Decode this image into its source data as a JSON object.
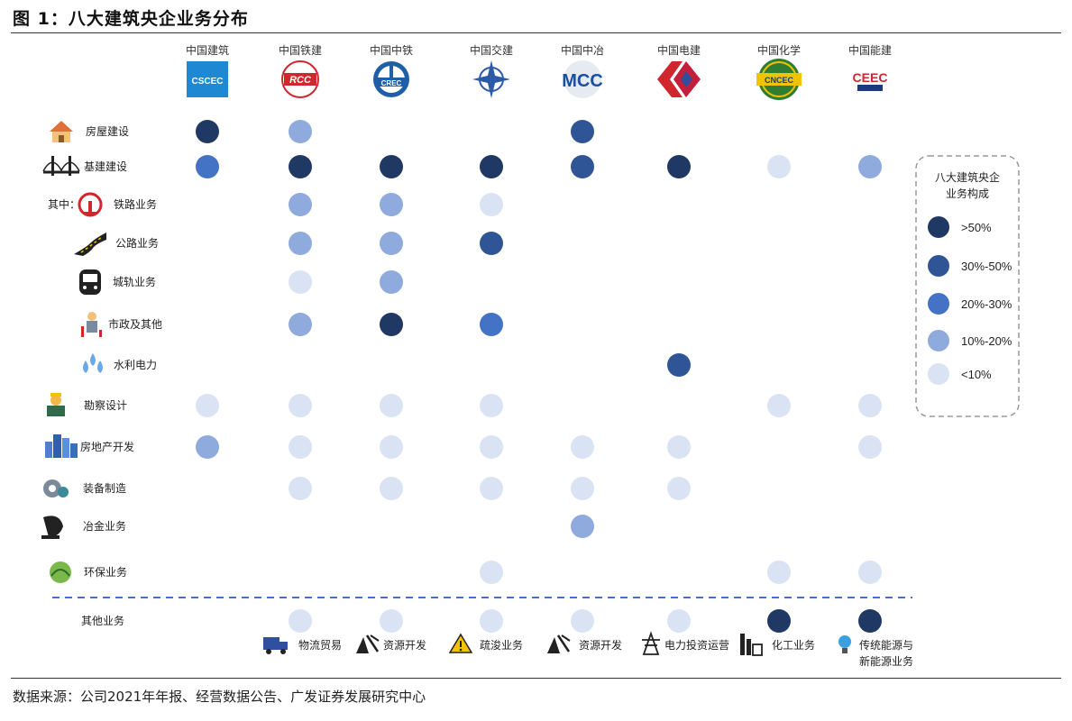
{
  "title": "图 1：八大建筑央企业务分布",
  "source": "数据来源：公司2021年年报、经营数据公告、广发证券发展研究中心",
  "colors": {
    "gt50": "#1f3864",
    "p30_50": "#2f5597",
    "p20_30": "#4472c4",
    "p10_20": "#8faadc",
    "lt10": "#dae3f3"
  },
  "chart_data": {
    "type": "table",
    "companies": [
      {
        "name": "中国建筑",
        "logo_text": "CSCEC",
        "icon": "cscec-logo-icon"
      },
      {
        "name": "中国铁建",
        "logo_text": "RCC",
        "icon": "crcc-logo-icon"
      },
      {
        "name": "中国中铁",
        "logo_text": "CREC",
        "icon": "crec-logo-icon"
      },
      {
        "name": "中国交建",
        "logo_text": "",
        "icon": "cccc-logo-icon"
      },
      {
        "name": "中国中冶",
        "logo_text": "MCC",
        "icon": "mcc-logo-icon"
      },
      {
        "name": "中国电建",
        "logo_text": "",
        "icon": "powerchina-logo-icon"
      },
      {
        "name": "中国化学",
        "logo_text": "CNCEC",
        "icon": "cncec-logo-icon"
      },
      {
        "name": "中国能建",
        "logo_text": "CEEC",
        "icon": "ceec-logo-icon"
      }
    ],
    "prefix_label": "其中：",
    "rows": [
      {
        "label": "房屋建设",
        "icon": "house-icon",
        "values": [
          "gt50",
          "p10_20",
          null,
          null,
          "p30_50",
          null,
          null,
          null
        ]
      },
      {
        "label": "基建建设",
        "icon": "bridge-icon",
        "values": [
          "p20_30",
          "gt50",
          "gt50",
          "gt50",
          "p30_50",
          "gt50",
          "lt10",
          "p10_20"
        ]
      },
      {
        "label": "铁路业务",
        "icon": "railway-icon",
        "values": [
          null,
          "p10_20",
          "p10_20",
          "lt10",
          null,
          null,
          null,
          null
        ]
      },
      {
        "label": "公路业务",
        "icon": "road-icon",
        "values": [
          null,
          "p10_20",
          "p10_20",
          "p30_50",
          null,
          null,
          null,
          null
        ]
      },
      {
        "label": "城轨业务",
        "icon": "metro-train-icon",
        "values": [
          null,
          "lt10",
          "p10_20",
          null,
          null,
          null,
          null,
          null
        ]
      },
      {
        "label": "市政及其他",
        "icon": "municipal-worker-icon",
        "values": [
          null,
          "p10_20",
          "gt50",
          "p20_30",
          null,
          null,
          null,
          null
        ]
      },
      {
        "label": "水利电力",
        "icon": "water-drops-icon",
        "values": [
          null,
          null,
          null,
          null,
          null,
          "p30_50",
          null,
          null
        ]
      },
      {
        "label": "勘察设计",
        "icon": "surveyor-icon",
        "values": [
          "lt10",
          "lt10",
          "lt10",
          "lt10",
          null,
          null,
          "lt10",
          "lt10"
        ]
      },
      {
        "label": "房地产开发",
        "icon": "city-buildings-icon",
        "values": [
          "p10_20",
          "lt10",
          "lt10",
          "lt10",
          "lt10",
          "lt10",
          null,
          "lt10"
        ]
      },
      {
        "label": "装备制造",
        "icon": "gear-machinery-icon",
        "values": [
          null,
          "lt10",
          "lt10",
          "lt10",
          "lt10",
          "lt10",
          null,
          null
        ]
      },
      {
        "label": "冶金业务",
        "icon": "metallurgy-icon",
        "values": [
          null,
          null,
          null,
          null,
          "p10_20",
          null,
          null,
          null
        ]
      },
      {
        "label": "环保业务",
        "icon": "globe-leaf-icon",
        "values": [
          null,
          null,
          null,
          "lt10",
          null,
          null,
          "lt10",
          "lt10"
        ]
      },
      {
        "label": "其他业务",
        "icon": "",
        "values": [
          null,
          "lt10",
          "lt10",
          "lt10",
          "lt10",
          "lt10",
          "gt50",
          "gt50"
        ]
      }
    ],
    "other_items": [
      {
        "label": "物流贸易",
        "icon": "truck-icon"
      },
      {
        "label": "资源开发",
        "icon": "mining-icon"
      },
      {
        "label": "疏浚业务",
        "icon": "warning-icon"
      },
      {
        "label": "资源开发",
        "icon": "mining-icon"
      },
      {
        "label": "电力投资运营",
        "icon": "power-tower-icon"
      },
      {
        "label": "化工业务",
        "icon": "chemical-plant-icon"
      },
      {
        "label": "传统能源与",
        "label2": "新能源业务",
        "icon": "lightbulb-icon"
      }
    ],
    "legend": {
      "title_line1": "八大建筑央企",
      "title_line2": "业务构成",
      "items": [
        {
          "key": "gt50",
          "label": ">50%"
        },
        {
          "key": "p30_50",
          "label": "30%-50%"
        },
        {
          "key": "p20_30",
          "label": "20%-30%"
        },
        {
          "key": "p10_20",
          "label": "10%-20%"
        },
        {
          "key": "lt10",
          "label": "<10%"
        }
      ]
    }
  }
}
